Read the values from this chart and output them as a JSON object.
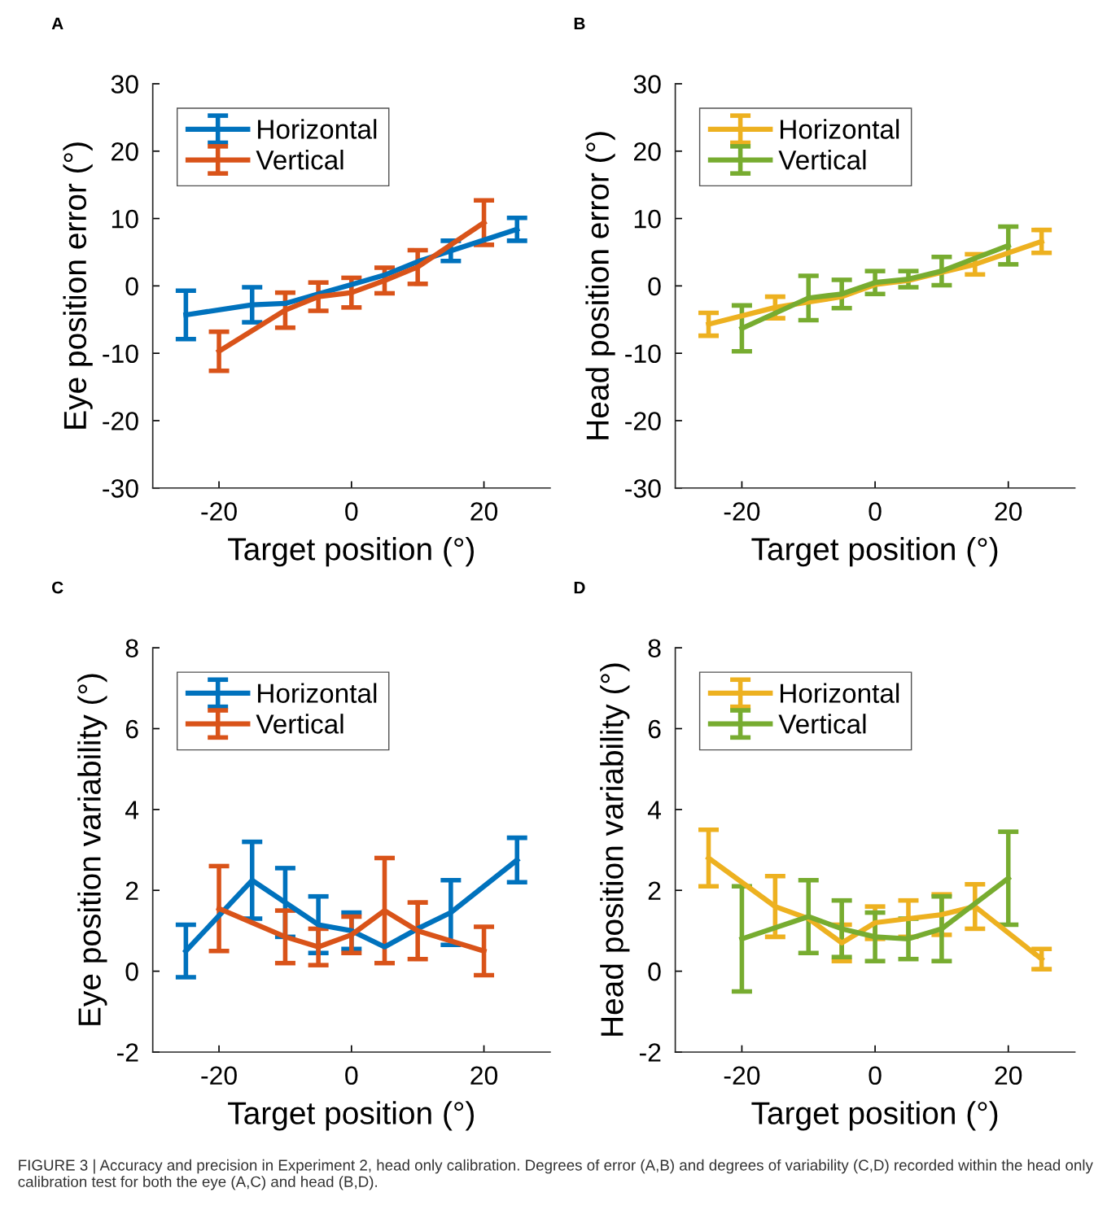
{
  "chart_data": [
    {
      "type": "line",
      "title": "A",
      "xlabel": "Target position (°)",
      "ylabel": "Eye position error (°)",
      "xlim": [
        -30,
        30
      ],
      "xticks": [
        -20,
        0,
        20
      ],
      "ylim": [
        -30,
        30
      ],
      "yticks": [
        -30,
        -20,
        -10,
        0,
        10,
        20,
        30
      ],
      "legend": "top left",
      "grid": false,
      "marker": "none",
      "line_style": "solid",
      "series": [
        {
          "name": "Horizontal",
          "color": "#0072bd",
          "x": [
            -25,
            -15,
            -10,
            -5,
            0,
            5,
            10,
            15,
            25
          ],
          "values": [
            -4.3,
            -2.8,
            -2.6,
            -1.2,
            0.2,
            1.6,
            3.6,
            5.2,
            8.4
          ],
          "errors": [
            3.6,
            2.6,
            null,
            null,
            null,
            null,
            null,
            1.5,
            1.7
          ]
        },
        {
          "name": "Vertical",
          "color": "#d95319",
          "x": [
            -20,
            -10,
            -5,
            0,
            5,
            10,
            20
          ],
          "values": [
            -9.7,
            -3.6,
            -1.6,
            -1.0,
            0.8,
            2.8,
            9.4
          ],
          "errors": [
            2.9,
            2.6,
            2.1,
            2.2,
            1.9,
            2.5,
            3.3
          ]
        }
      ]
    },
    {
      "type": "line",
      "title": "B",
      "xlabel": "Target position (°)",
      "ylabel": "Head position error (°)",
      "xlim": [
        -30,
        30
      ],
      "xticks": [
        -20,
        0,
        20
      ],
      "ylim": [
        -30,
        30
      ],
      "yticks": [
        -30,
        -20,
        -10,
        0,
        10,
        20,
        30
      ],
      "legend": "top left",
      "grid": false,
      "marker": "none",
      "line_style": "solid",
      "series": [
        {
          "name": "Horizontal",
          "color": "#edb120",
          "x": [
            -25,
            -15,
            -10,
            -5,
            0,
            5,
            10,
            15,
            25
          ],
          "values": [
            -5.7,
            -3.2,
            -2.4,
            -1.6,
            0.2,
            0.8,
            2.0,
            3.2,
            6.6
          ],
          "errors": [
            1.7,
            1.6,
            null,
            null,
            null,
            null,
            null,
            1.5,
            1.7
          ]
        },
        {
          "name": "Vertical",
          "color": "#77ac30",
          "x": [
            -20,
            -10,
            -5,
            0,
            5,
            10,
            20
          ],
          "values": [
            -6.3,
            -1.8,
            -1.2,
            0.5,
            1.0,
            2.2,
            6.0
          ],
          "errors": [
            3.4,
            3.3,
            2.1,
            1.7,
            1.2,
            2.1,
            2.8
          ]
        }
      ]
    },
    {
      "type": "line",
      "title": "C",
      "xlabel": "Target position (°)",
      "ylabel": "Eye position variability (°)",
      "xlim": [
        -30,
        30
      ],
      "xticks": [
        -20,
        0,
        20
      ],
      "ylim": [
        -2,
        8
      ],
      "yticks": [
        -2,
        0,
        2,
        4,
        6,
        8
      ],
      "legend": "top left",
      "grid": false,
      "marker": "none",
      "line_style": "solid",
      "series": [
        {
          "name": "Horizontal",
          "color": "#0072bd",
          "x": [
            -25,
            -15,
            -10,
            -5,
            0,
            5,
            10,
            15,
            25
          ],
          "values": [
            0.5,
            2.25,
            1.7,
            1.15,
            1.0,
            0.6,
            1.05,
            1.45,
            2.75
          ],
          "errors": [
            0.65,
            0.95,
            0.85,
            0.7,
            0.45,
            null,
            null,
            0.8,
            0.55
          ]
        },
        {
          "name": "Vertical",
          "color": "#d95319",
          "x": [
            -20,
            -10,
            -5,
            0,
            5,
            10,
            20
          ],
          "values": [
            1.55,
            0.85,
            0.6,
            0.9,
            1.5,
            1.0,
            0.5
          ],
          "errors": [
            1.05,
            0.65,
            0.45,
            0.45,
            1.3,
            0.7,
            0.6
          ]
        }
      ]
    },
    {
      "type": "line",
      "title": "D",
      "xlabel": "Target position (°)",
      "ylabel": "Head position variability (°)",
      "xlim": [
        -30,
        30
      ],
      "xticks": [
        -20,
        0,
        20
      ],
      "ylim": [
        -2,
        8
      ],
      "yticks": [
        -2,
        0,
        2,
        4,
        6,
        8
      ],
      "legend": "top left",
      "grid": false,
      "marker": "none",
      "line_style": "solid",
      "annotations": [
        "FIGURE 3 | Accuracy and precision in Experiment 2, head only calibration. Degrees of error (A,B) and degrees of variability (C,D) recorded within the head only calibration test for both the eye (A,C) and head (B,D)."
      ],
      "series": [
        {
          "name": "Horizontal",
          "color": "#edb120",
          "x": [
            -25,
            -15,
            -10,
            -5,
            0,
            5,
            10,
            15,
            25
          ],
          "values": [
            2.8,
            1.6,
            1.3,
            0.7,
            1.2,
            1.3,
            1.4,
            1.6,
            0.3
          ],
          "errors": [
            0.7,
            0.75,
            null,
            0.45,
            0.4,
            0.45,
            0.5,
            0.55,
            0.25
          ]
        },
        {
          "name": "Vertical",
          "color": "#77ac30",
          "x": [
            -20,
            -10,
            -5,
            0,
            5,
            10,
            20
          ],
          "values": [
            0.8,
            1.35,
            1.05,
            0.85,
            0.8,
            1.05,
            2.3
          ],
          "errors": [
            1.3,
            0.9,
            0.7,
            0.6,
            0.5,
            0.8,
            1.15
          ]
        }
      ]
    }
  ]
}
